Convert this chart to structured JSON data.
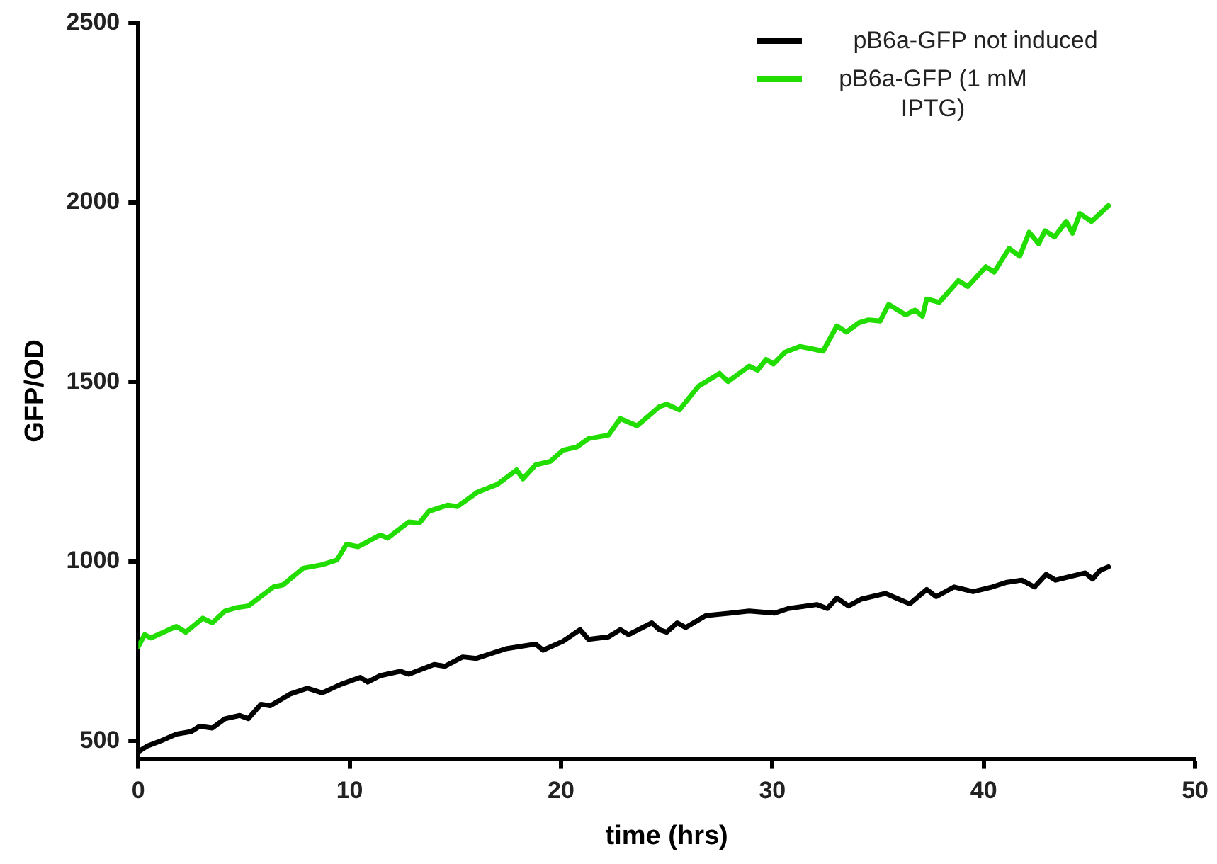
{
  "chart_data": {
    "type": "line",
    "xlabel": "time (hrs)",
    "ylabel": "GFP/OD",
    "xlim": [
      0,
      50
    ],
    "xticks": [
      0,
      10,
      20,
      30,
      40,
      50
    ],
    "ylim": [
      450,
      2500
    ],
    "yticks": [
      500,
      1000,
      1500,
      2000,
      2500
    ],
    "grid": false,
    "legend": "top right",
    "marker": "none",
    "line_style": "solid",
    "series": [
      {
        "name": "pB6a-GFP not induced",
        "color": "#000000",
        "x": [
          0,
          0.4,
          1.1,
          1.8,
          2.5,
          2.9,
          3.5,
          4.1,
          4.8,
          5.2,
          5.8,
          6.25,
          7.2,
          8,
          8.7,
          9.6,
          10.5,
          10.85,
          11.45,
          12.4,
          12.8,
          14,
          14.5,
          15.35,
          16,
          17.4,
          18.8,
          19.15,
          20.1,
          20.9,
          21.3,
          22.25,
          22.8,
          23.2,
          24.3,
          24.65,
          25,
          25.5,
          25.9,
          26.85,
          28,
          28.9,
          30.1,
          30.75,
          32.1,
          32.6,
          33.05,
          33.6,
          34.2,
          35.35,
          36.5,
          37.3,
          37.75,
          38.6,
          39.5,
          40.4,
          41.1,
          41.8,
          42.4,
          42.95,
          43.4,
          44.8,
          45.15,
          45.5,
          45.9
        ],
        "values": [
          470,
          485,
          501,
          519,
          526,
          541,
          536,
          562,
          571,
          562,
          602,
          598,
          631,
          647,
          634,
          658,
          677,
          664,
          682,
          694,
          686,
          713,
          708,
          734,
          730,
          757,
          770,
          753,
          778,
          810,
          783,
          790,
          810,
          796,
          829,
          810,
          803,
          829,
          816,
          849,
          856,
          862,
          856,
          869,
          880,
          869,
          898,
          876,
          895,
          911,
          882,
          922,
          902,
          929,
          916,
          929,
          942,
          948,
          929,
          964,
          948,
          968,
          951,
          975,
          985
        ]
      },
      {
        "name": "pB6a-GFP (1 mM IPTG)",
        "color": "#22dd00",
        "x": [
          0,
          0.3,
          0.6,
          1.8,
          2.25,
          3.05,
          3.5,
          4.1,
          4.7,
          5.2,
          6.4,
          6.85,
          7.8,
          8.7,
          9.4,
          9.85,
          10.4,
          11.45,
          11.8,
          12.8,
          13.3,
          13.75,
          14.65,
          15.1,
          16.05,
          17,
          17.9,
          18.2,
          18.8,
          19.5,
          20.1,
          20.75,
          21.3,
          22.25,
          22.8,
          23.6,
          24.65,
          25,
          25.6,
          26.5,
          27.5,
          27.9,
          28.9,
          29.3,
          29.7,
          30.05,
          30.6,
          31.3,
          32.4,
          33.05,
          33.5,
          34.1,
          34.55,
          35.1,
          35.5,
          36.3,
          36.75,
          37.1,
          37.3,
          37.9,
          38.8,
          39.25,
          40.1,
          40.5,
          41.2,
          41.7,
          42.15,
          42.6,
          42.9,
          43.35,
          43.9,
          44.2,
          44.55,
          45.1,
          45.9
        ],
        "values": [
          763,
          796,
          787,
          819,
          803,
          842,
          829,
          862,
          872,
          876,
          929,
          935,
          981,
          991,
          1004,
          1048,
          1041,
          1074,
          1065,
          1110,
          1107,
          1140,
          1157,
          1153,
          1193,
          1215,
          1255,
          1230,
          1269,
          1279,
          1310,
          1319,
          1342,
          1352,
          1398,
          1378,
          1431,
          1438,
          1422,
          1488,
          1524,
          1501,
          1544,
          1533,
          1563,
          1550,
          1583,
          1599,
          1586,
          1656,
          1639,
          1665,
          1673,
          1670,
          1716,
          1687,
          1700,
          1683,
          1731,
          1722,
          1782,
          1766,
          1821,
          1806,
          1872,
          1850,
          1917,
          1885,
          1921,
          1904,
          1947,
          1914,
          1969,
          1947,
          1991
        ]
      }
    ]
  }
}
